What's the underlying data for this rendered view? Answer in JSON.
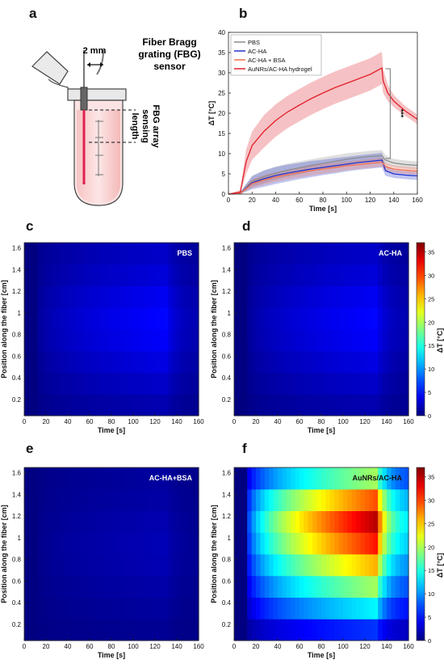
{
  "panels": {
    "a": "a",
    "b": "b",
    "c": "c",
    "d": "d",
    "e": "e",
    "f": "f"
  },
  "schematic": {
    "fbg_sensor_label": [
      "Fiber Bragg",
      "grating (FBG)",
      "sensor"
    ],
    "width_label": "2 mm",
    "sensing_label": [
      "FBG array",
      "sensing",
      "length"
    ]
  },
  "colors": {
    "PBS": "#8c8c8c",
    "AC-HA": "#2233cc",
    "AC-HA + BSA": "#f07050",
    "AuNRs/AC-HA hydrogel": "#e0202a"
  },
  "chart_data": [
    {
      "id": "b",
      "type": "line",
      "xlabel": "Time [s]",
      "ylabel": "ΔT [°C]",
      "xlim": [
        0,
        160
      ],
      "ylim": [
        0,
        40
      ],
      "xticks": [
        0,
        20,
        40,
        60,
        80,
        100,
        120,
        140,
        160
      ],
      "yticks": [
        0,
        5,
        10,
        15,
        20,
        25,
        30,
        35,
        40
      ],
      "legend_position": "top-left",
      "significance": "***",
      "series": [
        {
          "name": "PBS",
          "x": [
            0,
            10,
            20,
            30,
            40,
            50,
            60,
            70,
            80,
            90,
            100,
            110,
            120,
            130,
            133,
            140,
            150,
            160
          ],
          "y": [
            0,
            0.2,
            3.2,
            4.3,
            5.2,
            5.9,
            6.5,
            7.1,
            7.6,
            8.1,
            8.6,
            9.0,
            9.3,
            9.5,
            8.4,
            7.7,
            7.3,
            7.1
          ],
          "band": [
            0,
            0.3,
            1.4,
            1.6,
            1.6,
            1.6,
            1.6,
            1.5,
            1.5,
            1.5,
            1.5,
            1.4,
            1.4,
            1.4,
            1.2,
            1.0,
            1.0,
            1.0
          ]
        },
        {
          "name": "AC-HA",
          "x": [
            0,
            10,
            20,
            30,
            40,
            50,
            60,
            70,
            80,
            90,
            100,
            110,
            120,
            130,
            133,
            140,
            150,
            160
          ],
          "y": [
            0,
            0.2,
            2.8,
            3.8,
            4.6,
            5.2,
            5.7,
            6.2,
            6.6,
            7.0,
            7.4,
            7.8,
            8.1,
            8.4,
            5.8,
            5.0,
            4.7,
            4.5
          ],
          "band": [
            0,
            0.3,
            1.6,
            2.0,
            2.1,
            2.1,
            2.0,
            2.0,
            1.9,
            1.9,
            1.8,
            1.8,
            1.8,
            1.8,
            1.3,
            1.0,
            1.0,
            1.0
          ]
        },
        {
          "name": "AC-HA + BSA",
          "x": [
            0,
            10,
            20,
            30,
            40,
            50,
            60,
            70,
            80,
            90,
            100,
            110,
            120,
            130,
            133,
            140,
            150,
            160
          ],
          "y": [
            0,
            0.2,
            2.6,
            3.5,
            4.2,
            4.8,
            5.3,
            5.8,
            6.2,
            6.6,
            7.0,
            7.3,
            7.6,
            7.9,
            6.8,
            6.2,
            5.9,
            5.7
          ],
          "band": [
            0,
            0.3,
            1.1,
            1.2,
            1.2,
            1.2,
            1.2,
            1.2,
            1.2,
            1.2,
            1.1,
            1.1,
            1.1,
            1.1,
            1.0,
            0.9,
            0.9,
            0.9
          ]
        },
        {
          "name": "AuNRs/AC-HA hydrogel",
          "x": [
            0,
            10,
            15,
            20,
            30,
            40,
            50,
            60,
            70,
            80,
            90,
            100,
            110,
            120,
            130,
            131,
            135,
            140,
            150,
            160
          ],
          "y": [
            0,
            0.5,
            8,
            12,
            15.5,
            18.2,
            20.3,
            22,
            23.6,
            25,
            26.3,
            27.4,
            28.5,
            29.6,
            31.2,
            28,
            25,
            23,
            20.5,
            18.5
          ],
          "band": [
            0,
            0.5,
            3,
            3.5,
            4,
            4,
            4,
            4,
            4,
            4,
            4,
            4,
            4,
            4,
            4,
            3,
            2,
            1.5,
            1.2,
            1.2
          ]
        }
      ]
    },
    {
      "id": "c",
      "type": "heatmap",
      "label": "PBS",
      "xlabel": "Time [s]",
      "ylabel": "Position along the fiber [cm]",
      "xlim": [
        0,
        160
      ],
      "ylim": [
        0.05,
        1.65
      ],
      "xticks": [
        0,
        20,
        40,
        60,
        80,
        100,
        120,
        140,
        160
      ],
      "yticks": [
        0.2,
        0.4,
        0.6,
        0.8,
        1,
        1.2,
        1.4,
        1.6
      ],
      "colormap": "jet",
      "clim": [
        0,
        37
      ],
      "peak": 6.0,
      "heat_time": [
        10,
        130
      ],
      "row_weights": [
        0.3,
        0.45,
        0.6,
        0.75,
        0.8,
        0.7,
        0.55,
        0.45
      ]
    },
    {
      "id": "d",
      "type": "heatmap",
      "label": "AC-HA",
      "xlabel": "Time [s]",
      "ylabel": "Position along the fiber [cm]",
      "xlim": [
        0,
        160
      ],
      "ylim": [
        0.05,
        1.65
      ],
      "xticks": [
        0,
        20,
        40,
        60,
        80,
        100,
        120,
        140,
        160
      ],
      "yticks": [
        0.2,
        0.4,
        0.6,
        0.8,
        1,
        1.2,
        1.4,
        1.6
      ],
      "colormap": "jet",
      "clim": [
        0,
        37
      ],
      "colorbar_ticks": [
        0,
        5,
        10,
        15,
        20,
        25,
        30,
        35
      ],
      "colorbar_label": "ΔT [°C]",
      "peak": 6.0,
      "heat_time": [
        10,
        130
      ],
      "row_weights": [
        0.3,
        0.45,
        0.6,
        0.75,
        0.8,
        0.7,
        0.55,
        0.45
      ]
    },
    {
      "id": "e",
      "type": "heatmap",
      "label": "AC-HA+BSA",
      "xlabel": "Time [s]",
      "ylabel": "Position along the fiber [cm]",
      "xlim": [
        0,
        160
      ],
      "ylim": [
        0.05,
        1.65
      ],
      "xticks": [
        0,
        20,
        40,
        60,
        80,
        100,
        120,
        140,
        160
      ],
      "yticks": [
        0.2,
        0.4,
        0.6,
        0.8,
        1,
        1.2,
        1.4,
        1.6
      ],
      "colormap": "jet",
      "clim": [
        0,
        37
      ],
      "peak": 2.5,
      "heat_time": [
        10,
        130
      ],
      "row_weights": [
        0.3,
        0.45,
        0.6,
        0.75,
        0.8,
        0.7,
        0.55,
        0.45
      ]
    },
    {
      "id": "f",
      "type": "heatmap",
      "label": "AuNRs/AC-HA",
      "xlabel": "Time [s]",
      "ylabel": "Position along the fiber [cm]",
      "xlim": [
        0,
        160
      ],
      "ylim": [
        0.05,
        1.65
      ],
      "xticks": [
        0,
        20,
        40,
        60,
        80,
        100,
        120,
        140,
        160
      ],
      "yticks": [
        0.2,
        0.4,
        0.6,
        0.8,
        1,
        1.2,
        1.4,
        1.6
      ],
      "colormap": "jet",
      "clim": [
        0,
        37
      ],
      "colorbar_ticks": [
        0,
        5,
        10,
        15,
        20,
        25,
        30,
        35
      ],
      "colorbar_label": "ΔT [°C]",
      "peak": 36.0,
      "heat_time": [
        10,
        130
      ],
      "row_weights": [
        0.18,
        0.38,
        0.55,
        0.72,
        0.88,
        0.97,
        0.82,
        0.55
      ]
    }
  ]
}
